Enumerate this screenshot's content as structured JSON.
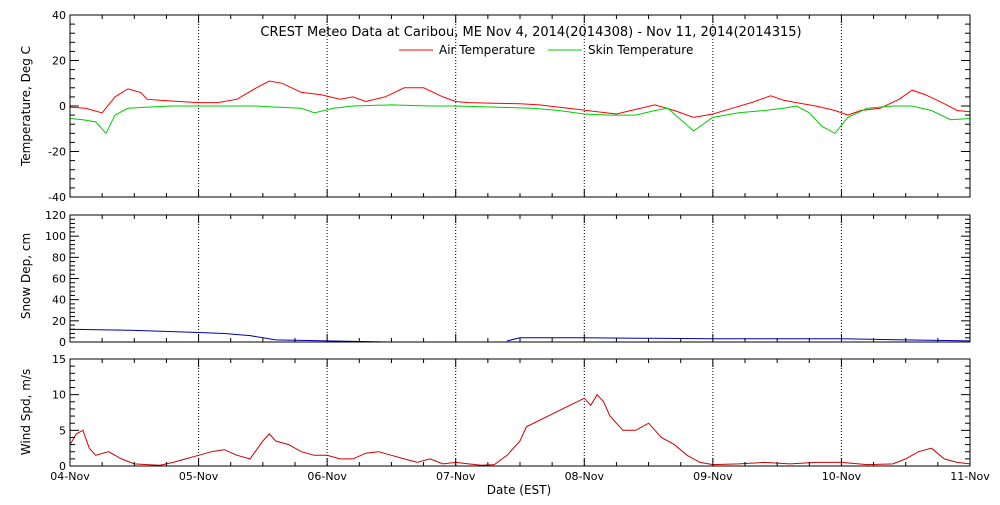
{
  "chart_data": {
    "type": "line",
    "title": "CREST Meteo Data at Caribou, ME   Nov  4, 2014(2014308) - Nov 11, 2014(2014315)",
    "xlabel": "Date (EST)",
    "x_ticks": [
      "04-Nov",
      "05-Nov",
      "06-Nov",
      "07-Nov",
      "08-Nov",
      "09-Nov",
      "10-Nov",
      "11-Nov"
    ],
    "x_range_days": [
      0,
      7
    ],
    "grid": "vertical dotted at day boundaries",
    "panels": [
      {
        "id": "temperature",
        "ylabel": "Temperature, Deg C",
        "ylim": [
          -40,
          40
        ],
        "yticks": [
          -40,
          -20,
          0,
          20,
          40
        ],
        "legend": {
          "placement": "top-center",
          "entries": [
            "Air Temperature",
            "Skin Temperature"
          ]
        },
        "series": [
          {
            "name": "Air Temperature",
            "color": "#ff0000",
            "x": [
              0,
              0.12,
              0.25,
              0.35,
              0.45,
              0.55,
              0.6,
              0.7,
              0.85,
              1.0,
              1.15,
              1.3,
              1.45,
              1.55,
              1.65,
              1.8,
              1.95,
              2.1,
              2.2,
              2.3,
              2.45,
              2.6,
              2.75,
              2.9,
              3.0,
              3.1,
              3.3,
              3.5,
              3.65,
              3.8,
              3.95,
              4.1,
              4.25,
              4.4,
              4.55,
              4.7,
              4.85,
              5.0,
              5.15,
              5.3,
              5.45,
              5.55,
              5.65,
              5.8,
              5.95,
              6.05,
              6.15,
              6.3,
              6.45,
              6.55,
              6.65,
              6.8,
              6.9,
              7.0
            ],
            "y": [
              -0.5,
              -1,
              -3,
              4,
              7.5,
              6,
              3,
              2.5,
              2,
              1.5,
              1.5,
              3,
              8,
              11,
              10,
              6,
              5,
              3,
              4,
              2,
              4,
              8,
              8,
              4,
              2,
              1.5,
              1.2,
              1,
              0.5,
              -0.5,
              -1.5,
              -2.5,
              -3.5,
              -1.5,
              0.5,
              -2,
              -5,
              -3.5,
              -1,
              1.5,
              4.5,
              2.5,
              1.5,
              0,
              -2,
              -4,
              -2,
              -1,
              3,
              7,
              5,
              1,
              -2,
              -2.5
            ]
          },
          {
            "name": "Skin Temperature",
            "color": "#00cc00",
            "x": [
              0,
              0.1,
              0.2,
              0.28,
              0.35,
              0.45,
              0.6,
              0.8,
              1.0,
              1.2,
              1.45,
              1.6,
              1.8,
              1.9,
              2.05,
              2.2,
              2.5,
              2.8,
              3.0,
              3.3,
              3.6,
              3.8,
              4.0,
              4.2,
              4.4,
              4.55,
              4.65,
              4.75,
              4.85,
              5.0,
              5.2,
              5.4,
              5.55,
              5.65,
              5.75,
              5.85,
              5.95,
              6.05,
              6.2,
              6.4,
              6.55,
              6.7,
              6.85,
              7.0
            ],
            "y": [
              -5.5,
              -6,
              -7,
              -12,
              -4,
              -1,
              -0.5,
              0,
              0,
              0,
              0,
              -0.5,
              -1,
              -3,
              -1,
              0,
              0.5,
              0,
              0,
              -0.5,
              -1,
              -2,
              -3.5,
              -4,
              -4,
              -2,
              -1,
              -6,
              -11,
              -5,
              -3,
              -2,
              -1,
              0,
              -3,
              -9,
              -12,
              -5,
              -1,
              0,
              0,
              -2,
              -6,
              -5.5
            ]
          }
        ]
      },
      {
        "id": "snow",
        "ylabel": "Snow Dep, cm",
        "ylim": [
          0,
          120
        ],
        "yticks": [
          0,
          20,
          40,
          60,
          80,
          100,
          120
        ],
        "series": [
          {
            "color": "#0000aa",
            "x": [
              0,
              0.5,
              1.0,
              1.2,
              1.4,
              1.6,
              1.8,
              2.0,
              2.5,
              3.0,
              3.25
            ],
            "y": [
              12,
              11,
              9,
              8,
              6,
              2,
              1.5,
              1,
              0,
              -1,
              -1
            ]
          },
          {
            "color": "#0000aa",
            "x": [
              3.4,
              3.5,
              4.0,
              4.5,
              5.0,
              5.5,
              6.0,
              6.5,
              7.0
            ],
            "y": [
              1,
              4,
              4,
              3.5,
              3,
              3,
              3,
              2,
              1
            ]
          }
        ]
      },
      {
        "id": "wind",
        "ylabel": "Wind Spd, m/s",
        "ylim": [
          0,
          15
        ],
        "yticks": [
          0,
          5,
          10,
          15
        ],
        "series": [
          {
            "color": "#cc0000",
            "x": [
              0,
              0.05,
              0.1,
              0.15,
              0.2,
              0.3,
              0.4,
              0.5,
              0.6,
              0.7,
              0.8,
              0.9,
              1.0,
              1.1,
              1.2,
              1.3,
              1.4,
              1.5,
              1.55,
              1.6,
              1.7,
              1.8,
              1.9,
              2.0,
              2.1,
              2.2,
              2.3,
              2.4,
              2.5,
              2.6,
              2.7,
              2.8,
              2.9,
              3.0,
              3.1,
              3.2,
              3.3,
              3.4,
              3.5,
              3.55,
              4.0,
              4.05,
              4.1,
              4.15,
              4.2,
              4.3,
              4.4,
              4.5,
              4.6,
              4.7,
              4.8,
              4.9,
              5.0,
              5.2,
              5.4,
              5.6,
              5.8,
              6.0,
              6.2,
              6.4,
              6.5,
              6.6,
              6.7,
              6.8,
              6.9,
              7.0
            ],
            "y": [
              3,
              4.5,
              5,
              2.5,
              1.5,
              2,
              1,
              0.3,
              0.2,
              0.1,
              0.5,
              1,
              1.5,
              2,
              2.3,
              1.5,
              1,
              3.5,
              4.5,
              3.5,
              3,
              2,
              1.5,
              1.5,
              1,
              1,
              1.8,
              2,
              1.5,
              1,
              0.5,
              1,
              0.3,
              0.5,
              0.3,
              0.1,
              0.2,
              1.5,
              3.5,
              5.5,
              9.5,
              8.5,
              10,
              9,
              7,
              5,
              5,
              6,
              4,
              3,
              1.5,
              0.5,
              0.2,
              0.3,
              0.5,
              0.3,
              0.5,
              0.5,
              0.2,
              0.3,
              1,
              2,
              2.5,
              1,
              0.5,
              0.3
            ]
          }
        ]
      }
    ]
  }
}
